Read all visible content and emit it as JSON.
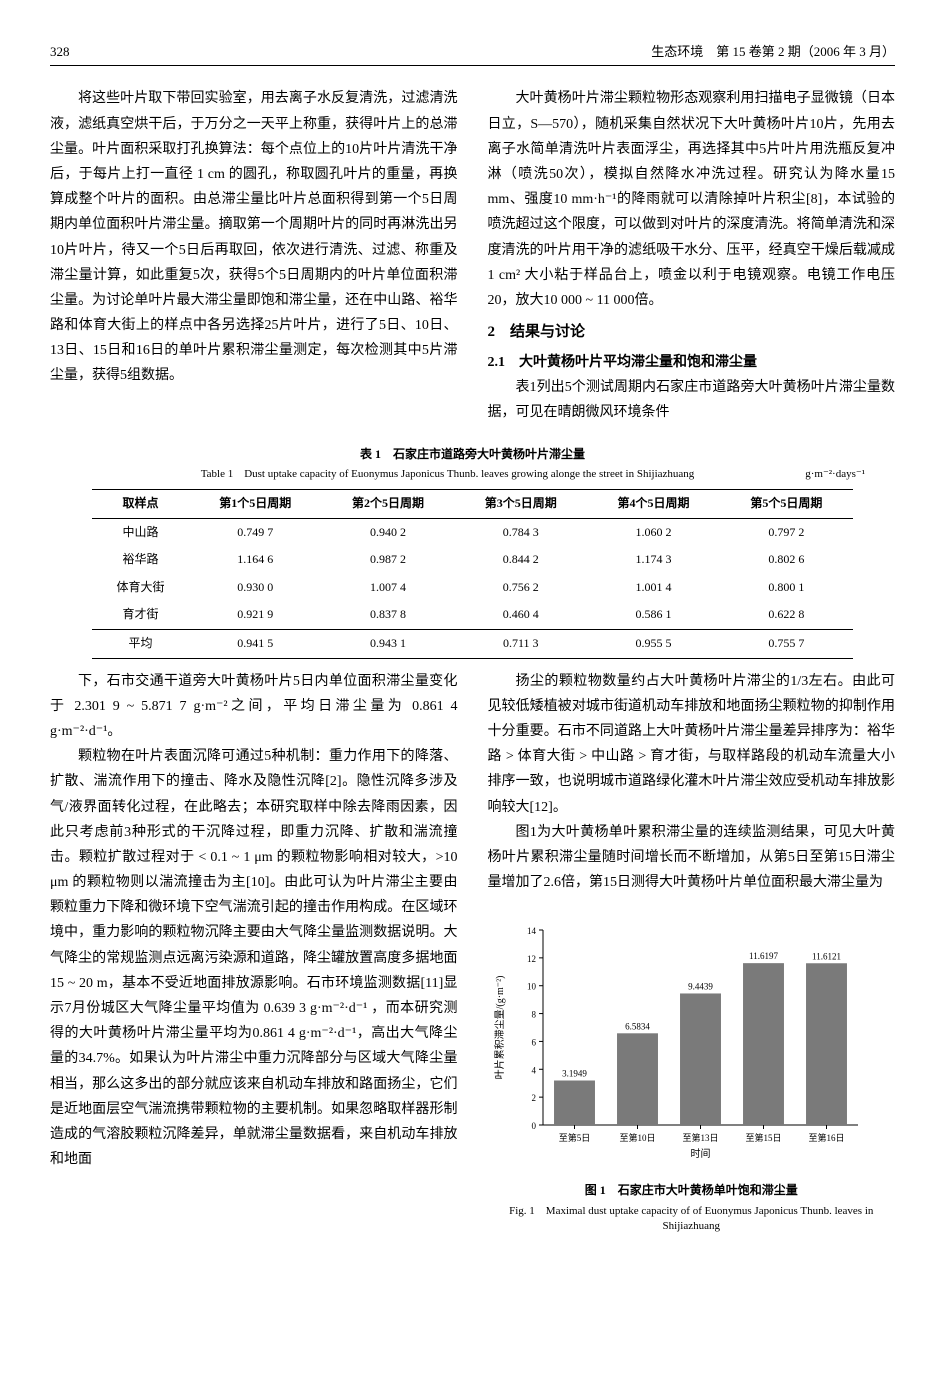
{
  "header": {
    "page_number": "328",
    "journal_info": "生态环境　第 15 卷第 2 期（2006 年 3 月）"
  },
  "top_left_paragraph": "将这些叶片取下带回实验室，用去离子水反复清洗，过滤清洗液，滤纸真空烘干后，于万分之一天平上称重，获得叶片上的总滞尘量。叶片面积采取打孔换算法：每个点位上的10片叶片清洗干净后，于每片上打一直径 1 cm 的圆孔，称取圆孔叶片的重量，再换算成整个叶片的面积。由总滞尘量比叶片总面积得到第一个5日周期内单位面积叶片滞尘量。摘取第一个周期叶片的同时再淋洗出另10片叶片，待又一个5日后再取回，依次进行清洗、过滤、称重及滞尘量计算，如此重复5次，获得5个5日周期内的叶片单位面积滞尘量。为讨论单叶片最大滞尘量即饱和滞尘量，还在中山路、裕华路和体育大街上的样点中各另选择25片叶片，进行了5日、10日、13日、15日和16日的单叶片累积滞尘量测定，每次检测其中5片滞尘量，获得5组数据。",
  "top_right_paragraph": "大叶黄杨叶片滞尘颗粒物形态观察利用扫描电子显微镜（日本日立，S—570），随机采集自然状况下大叶黄杨叶片10片，先用去离子水简单清洗叶片表面浮尘，再选择其中5片叶片用洗瓶反复冲淋（喷洗50次），模拟自然降水冲洗过程。研究认为降水量15 mm、强度10 mm·h⁻¹的降雨就可以清除掉叶片积尘[8]，本试验的喷洗超过这个限度，可以做到对叶片的深度清洗。将简单清洗和深度清洗的叶片用干净的滤纸吸干水分、压平，经真空干燥后载减成 1 cm² 大小粘于样品台上，喷金以利于电镜观察。电镜工作电压20，放大10 000 ~ 11 000倍。",
  "section2_title": "2　结果与讨论",
  "section21_title": "2.1　大叶黄杨叶片平均滞尘量和饱和滞尘量",
  "section21_intro": "表1列出5个测试周期内石家庄市道路旁大叶黄杨叶片滞尘量数据，可见在晴朗微风环境条件",
  "table1": {
    "caption_cn": "表 1　石家庄市道路旁大叶黄杨叶片滞尘量",
    "caption_en": "Table 1　Dust uptake capacity of Euonymus Japonicus Thunb. leaves growing alonge the street in Shijiazhuang",
    "unit": "g·m⁻²·days⁻¹",
    "columns": [
      "取样点",
      "第1个5日周期",
      "第2个5日周期",
      "第3个5日周期",
      "第4个5日周期",
      "第5个5日周期"
    ],
    "rows": [
      [
        "中山路",
        "0.749 7",
        "0.940 2",
        "0.784 3",
        "1.060 2",
        "0.797 2"
      ],
      [
        "裕华路",
        "1.164 6",
        "0.987 2",
        "0.844 2",
        "1.174 3",
        "0.802 6"
      ],
      [
        "体育大街",
        "0.930 0",
        "1.007 4",
        "0.756 2",
        "1.001 4",
        "0.800 1"
      ],
      [
        "育才街",
        "0.921 9",
        "0.837 8",
        "0.460 4",
        "0.586 1",
        "0.622 8"
      ],
      [
        "平均",
        "0.941 5",
        "0.943 1",
        "0.711 3",
        "0.955 5",
        "0.755 7"
      ]
    ]
  },
  "lower_left_p1": "下，石市交通干道旁大叶黄杨叶片5日内单位面积滞尘量变化于 2.301 9 ~ 5.871 7 g·m⁻²之间，平均日滞尘量为 0.861 4 g·m⁻²·d⁻¹。",
  "lower_left_p2": "颗粒物在叶片表面沉降可通过5种机制：重力作用下的降落、扩散、湍流作用下的撞击、降水及隐性沉降[2]。隐性沉降多涉及气/液界面转化过程，在此略去；本研究取样中除去降雨因素，因此只考虑前3种形式的干沉降过程，即重力沉降、扩散和湍流撞击。颗粒扩散过程对于 < 0.1 ~ 1 μm 的颗粒物影响相对较大，>10 μm 的颗粒物则以湍流撞击为主[10]。由此可认为叶片滞尘主要由颗粒重力下降和微环境下空气湍流引起的撞击作用构成。在区域环境中，重力影响的颗粒物沉降主要由大气降尘量监测数据说明。大气降尘的常规监测点远离污染源和道路，降尘罐放置高度多据地面15 ~ 20 m，基本不受近地面排放源影响。石市环境监测数据[11]显示7月份城区大气降尘量平均值为 0.639 3 g·m⁻²·d⁻¹ ，而本研究测得的大叶黄杨叶片滞尘量平均为0.861 4 g·m⁻²·d⁻¹，高出大气降尘量的34.7%。如果认为叶片滞尘中重力沉降部分与区域大气降尘量相当，那么这多出的部分就应该来自机动车排放和路面扬尘，它们是近地面层空气湍流携带颗粒物的主要机制。如果忽略取样器形制造成的气溶胶颗粒沉降差异，单就滞尘量数据看，来自机动车排放和地面",
  "lower_right_p1": "扬尘的颗粒物数量约占大叶黄杨叶片滞尘的1/3左右。由此可见较低矮植被对城市街道机动车排放和地面扬尘颗粒物的抑制作用十分重要。石市不同道路上大叶黄杨叶片滞尘量差异排序为：裕华路 > 体育大街 > 中山路 > 育才街，与取样路段的机动车流量大小排序一致，也说明城市道路绿化灌木叶片滞尘效应受机动车排放影响较大[12]。",
  "lower_right_p2": "图1为大叶黄杨单叶累积滞尘量的连续监测结果，可见大叶黄杨叶片累积滞尘量随时间增长而不断增加，从第5日至第15日滞尘量增加了2.6倍，第15日测得大叶黄杨叶片单位面积最大滞尘量为",
  "figure1": {
    "type": "bar",
    "categories": [
      "至第5日",
      "至第10日",
      "至第13日",
      "至第15日",
      "至第16日"
    ],
    "values": [
      3.1949,
      6.5834,
      9.4439,
      11.6197,
      11.6121
    ],
    "value_labels": [
      "3.1949",
      "6.5834",
      "9.4439",
      "11.6197",
      "11.6121"
    ],
    "y_label": "叶片累积滞尘量/(g·m⁻²)",
    "x_label": "时间",
    "ylim": [
      0,
      14
    ],
    "ytick_step": 2,
    "bar_color": "#7a7a7a",
    "bar_text_color": "#000000",
    "axis_color": "#000000",
    "background_color": "#ffffff",
    "bar_width": 0.65,
    "label_fontsize": 10,
    "tick_fontsize": 9,
    "caption_cn": "图 1　石家庄市大叶黄杨单叶饱和滞尘量",
    "caption_en": "Fig. 1　Maximal dust uptake capacity of of Euonymus Japonicus Thunb. leaves in Shijiazhuang"
  }
}
